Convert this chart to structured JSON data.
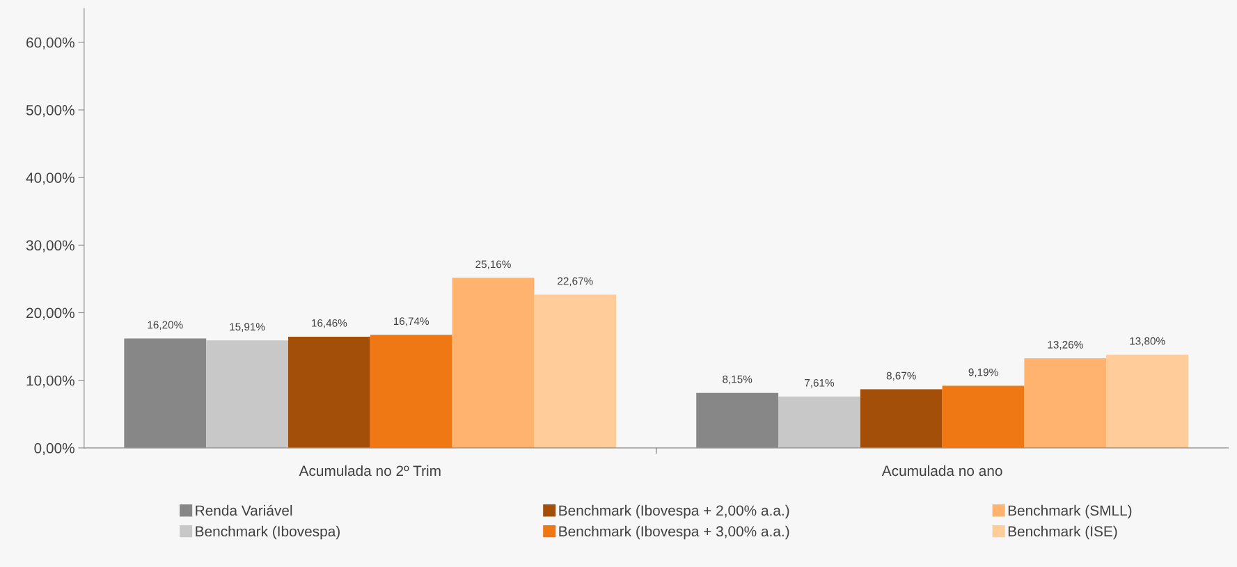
{
  "chart_data": {
    "type": "bar",
    "categories": [
      "Acumulada no 2º Trim",
      "Acumulada no ano"
    ],
    "series": [
      {
        "name": "Renda Variável",
        "color": "#878787",
        "values": [
          16.2,
          8.15
        ],
        "value_labels": [
          "16,20%",
          "8,15%"
        ]
      },
      {
        "name": "Benchmark (Ibovespa)",
        "color": "#c8c8c8",
        "values": [
          15.91,
          7.61
        ],
        "value_labels": [
          "15,91%",
          "7,61%"
        ]
      },
      {
        "name": "Benchmark (Ibovespa + 2,00% a.a.)",
        "color": "#a34f0a",
        "values": [
          16.46,
          8.67
        ],
        "value_labels": [
          "16,46%",
          "8,67%"
        ]
      },
      {
        "name": "Benchmark (Ibovespa + 3,00% a.a.)",
        "color": "#f07814",
        "values": [
          16.74,
          9.19
        ],
        "value_labels": [
          "16,74%",
          "9,19%"
        ]
      },
      {
        "name": "Benchmark (SMLL)",
        "color": "#ffb36e",
        "values": [
          25.16,
          13.26
        ],
        "value_labels": [
          "25,16%",
          "13,26%"
        ]
      },
      {
        "name": "Benchmark (ISE)",
        "color": "#ffcc9a",
        "values": [
          22.67,
          13.8
        ],
        "value_labels": [
          "22,67%",
          "13,80%"
        ]
      }
    ],
    "ylim": [
      0,
      65
    ],
    "yticks": [
      {
        "value": 0,
        "label": "0,00%"
      },
      {
        "value": 10,
        "label": "10,00%"
      },
      {
        "value": 20,
        "label": "20,00%"
      },
      {
        "value": 30,
        "label": "30,00%"
      },
      {
        "value": 40,
        "label": "40,00%"
      },
      {
        "value": 50,
        "label": "50,00%"
      },
      {
        "value": 60,
        "label": "60,00%"
      }
    ],
    "grid": false,
    "legend": "bottom"
  }
}
